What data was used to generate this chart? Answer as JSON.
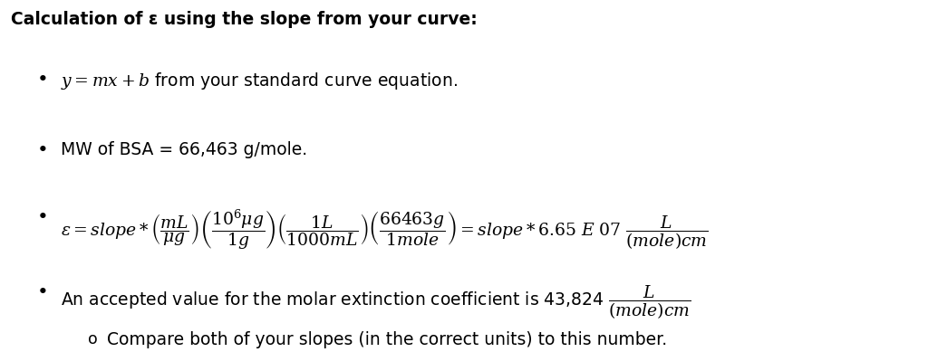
{
  "bg_color": "#ffffff",
  "title_text": "Calculation of ε using the slope from your curve:",
  "text_color": "#000000",
  "font_size": 13.5,
  "fig_width": 10.24,
  "fig_height": 3.89
}
